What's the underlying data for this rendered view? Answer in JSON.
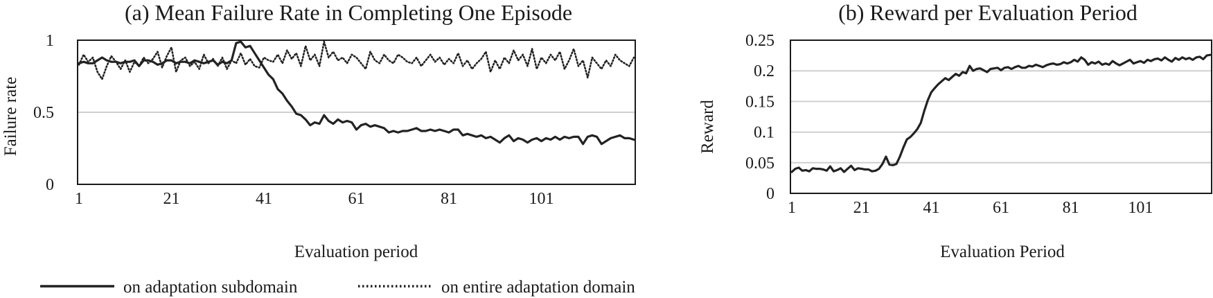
{
  "chart_data": [
    {
      "type": "line",
      "title": "(a) Mean Failure Rate in Completing One Episode",
      "xlabel": "Evaluation period",
      "ylabel": "Failure rate",
      "xlim": [
        1,
        121
      ],
      "ylim": [
        0,
        1
      ],
      "x_ticks": [
        1,
        21,
        41,
        61,
        81,
        101
      ],
      "y_ticks": [
        0,
        0.5,
        1
      ],
      "y_tick_labels": [
        "0",
        "0.5",
        "1"
      ],
      "grid": true,
      "series": [
        {
          "name": "on adaptation subdomain",
          "style": "solid",
          "color": "#222222",
          "values": [
            0.84,
            0.85,
            0.84,
            0.84,
            0.86,
            0.88,
            0.86,
            0.85,
            0.85,
            0.84,
            0.85,
            0.85,
            0.86,
            0.82,
            0.86,
            0.86,
            0.85,
            0.83,
            0.84,
            0.86,
            0.86,
            0.84,
            0.85,
            0.85,
            0.84,
            0.86,
            0.85,
            0.84,
            0.85,
            0.86,
            0.83,
            0.85,
            0.84,
            0.86,
            0.98,
            0.99,
            0.95,
            0.96,
            0.91,
            0.86,
            0.81,
            0.76,
            0.73,
            0.66,
            0.63,
            0.58,
            0.54,
            0.49,
            0.48,
            0.45,
            0.41,
            0.43,
            0.42,
            0.48,
            0.44,
            0.42,
            0.45,
            0.43,
            0.44,
            0.43,
            0.38,
            0.41,
            0.42,
            0.4,
            0.41,
            0.4,
            0.39,
            0.36,
            0.37,
            0.36,
            0.37,
            0.37,
            0.38,
            0.39,
            0.37,
            0.37,
            0.38,
            0.37,
            0.38,
            0.37,
            0.36,
            0.38,
            0.38,
            0.34,
            0.35,
            0.34,
            0.33,
            0.34,
            0.32,
            0.33,
            0.31,
            0.29,
            0.32,
            0.34,
            0.3,
            0.32,
            0.31,
            0.29,
            0.31,
            0.32,
            0.3,
            0.32,
            0.31,
            0.33,
            0.31,
            0.33,
            0.32,
            0.33,
            0.33,
            0.28,
            0.33,
            0.34,
            0.33,
            0.28,
            0.3,
            0.32,
            0.33,
            0.34,
            0.32,
            0.32,
            0.31
          ]
        },
        {
          "name": "on entire adaptation domain",
          "style": "dotted",
          "color": "#222222",
          "values": [
            0.83,
            0.9,
            0.85,
            0.88,
            0.78,
            0.73,
            0.82,
            0.89,
            0.85,
            0.8,
            0.86,
            0.78,
            0.85,
            0.82,
            0.88,
            0.84,
            0.87,
            0.92,
            0.81,
            0.89,
            0.95,
            0.78,
            0.86,
            0.88,
            0.82,
            0.85,
            0.8,
            0.9,
            0.84,
            0.87,
            0.82,
            0.88,
            0.8,
            0.86,
            0.84,
            0.91,
            0.83,
            0.87,
            0.82,
            0.81,
            0.88,
            0.86,
            0.85,
            0.9,
            0.84,
            0.93,
            0.87,
            0.91,
            0.82,
            0.96,
            0.86,
            0.9,
            0.82,
            0.99,
            0.88,
            0.92,
            0.86,
            0.88,
            0.84,
            0.9,
            0.88,
            0.84,
            0.8,
            0.92,
            0.86,
            0.84,
            0.9,
            0.86,
            0.84,
            0.9,
            0.88,
            0.85,
            0.84,
            0.88,
            0.82,
            0.86,
            0.9,
            0.85,
            0.88,
            0.83,
            0.87,
            0.84,
            0.91,
            0.82,
            0.86,
            0.8,
            0.84,
            0.87,
            0.92,
            0.78,
            0.86,
            0.8,
            0.88,
            0.84,
            0.93,
            0.86,
            0.9,
            0.82,
            0.94,
            0.8,
            0.88,
            0.84,
            0.9,
            0.86,
            0.92,
            0.8,
            0.86,
            0.94,
            0.82,
            0.86,
            0.74,
            0.88,
            0.84,
            0.8,
            0.86,
            0.82,
            0.9,
            0.86,
            0.84,
            0.82,
            0.88
          ]
        }
      ],
      "legend": {
        "placement": "bottom"
      }
    },
    {
      "type": "line",
      "title": "(b) Reward per Evaluation Period",
      "xlabel": "Evaluation Period",
      "ylabel": "Reward",
      "xlim": [
        1,
        121
      ],
      "ylim": [
        0,
        0.25
      ],
      "x_ticks": [
        1,
        21,
        41,
        61,
        81,
        101
      ],
      "y_ticks": [
        0,
        0.05,
        0.1,
        0.15,
        0.2,
        0.25
      ],
      "y_tick_labels": [
        "0",
        "0.05",
        "0.1",
        "0.15",
        "0.2",
        "0.25"
      ],
      "grid": true,
      "series": [
        {
          "style": "solid",
          "color": "#222222",
          "values": [
            0.035,
            0.04,
            0.042,
            0.037,
            0.038,
            0.036,
            0.041,
            0.04,
            0.04,
            0.039,
            0.037,
            0.044,
            0.036,
            0.038,
            0.041,
            0.035,
            0.04,
            0.045,
            0.038,
            0.041,
            0.04,
            0.039,
            0.039,
            0.036,
            0.037,
            0.04,
            0.048,
            0.06,
            0.047,
            0.046,
            0.048,
            0.06,
            0.075,
            0.088,
            0.092,
            0.098,
            0.105,
            0.115,
            0.135,
            0.152,
            0.165,
            0.172,
            0.178,
            0.183,
            0.188,
            0.185,
            0.19,
            0.195,
            0.192,
            0.198,
            0.196,
            0.208,
            0.2,
            0.203,
            0.204,
            0.201,
            0.198,
            0.203,
            0.204,
            0.205,
            0.201,
            0.205,
            0.206,
            0.203,
            0.206,
            0.208,
            0.205,
            0.205,
            0.208,
            0.207,
            0.21,
            0.208,
            0.206,
            0.209,
            0.211,
            0.212,
            0.21,
            0.211,
            0.214,
            0.212,
            0.214,
            0.218,
            0.215,
            0.222,
            0.218,
            0.21,
            0.214,
            0.212,
            0.215,
            0.21,
            0.212,
            0.21,
            0.216,
            0.212,
            0.209,
            0.212,
            0.215,
            0.218,
            0.212,
            0.214,
            0.216,
            0.213,
            0.218,
            0.216,
            0.219,
            0.22,
            0.217,
            0.222,
            0.218,
            0.215,
            0.221,
            0.218,
            0.222,
            0.219,
            0.221,
            0.218,
            0.222,
            0.223,
            0.219,
            0.225,
            0.226
          ]
        }
      ]
    }
  ]
}
